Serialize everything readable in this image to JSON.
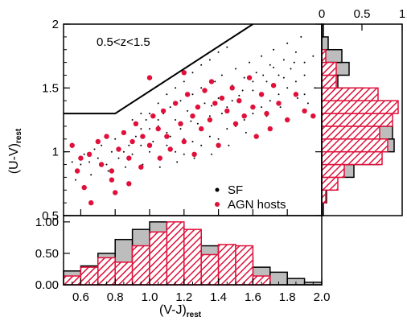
{
  "chart_data": [
    {
      "type": "scatter",
      "panel": "main",
      "annotation": "0.5<z<1.5",
      "xlabel": "(V-J)",
      "xlabel_sub": "rest",
      "ylabel": "(U-V)",
      "ylabel_sub": "rest",
      "xlim": [
        0.5,
        2.0
      ],
      "ylim": [
        0.5,
        2.0
      ],
      "y_ticks": [
        0.5,
        1,
        1.5,
        2
      ],
      "y_tick_labels": [
        "0.5",
        "1",
        "1.5",
        "2"
      ],
      "legend_position": "bottom-right",
      "selection_boundary": [
        [
          0.5,
          1.3
        ],
        [
          0.8,
          1.3
        ],
        [
          1.6,
          2.0
        ]
      ],
      "series": [
        {
          "name": "SF",
          "color": "#000000",
          "marker": "dot",
          "points": [
            [
              0.88,
              1.05
            ],
            [
              0.92,
              1.12
            ],
            [
              0.95,
              1.18
            ],
            [
              0.98,
              1.25
            ],
            [
              1.02,
              1.08
            ],
            [
              1.05,
              1.2
            ],
            [
              1.08,
              1.3
            ],
            [
              1.1,
              1.15
            ],
            [
              1.12,
              1.35
            ],
            [
              1.15,
              1.25
            ],
            [
              1.18,
              1.4
            ],
            [
              1.2,
              1.1
            ],
            [
              1.22,
              1.32
            ],
            [
              1.25,
              1.45
            ],
            [
              1.28,
              1.22
            ],
            [
              1.3,
              1.5
            ],
            [
              1.32,
              1.38
            ],
            [
              1.35,
              1.28
            ],
            [
              1.38,
              1.55
            ],
            [
              1.4,
              1.42
            ],
            [
              1.42,
              1.6
            ],
            [
              1.45,
              1.35
            ],
            [
              1.48,
              1.52
            ],
            [
              1.5,
              1.65
            ],
            [
              1.52,
              1.44
            ],
            [
              1.55,
              1.58
            ],
            [
              1.58,
              1.7
            ],
            [
              1.6,
              1.48
            ],
            [
              1.62,
              1.62
            ],
            [
              1.65,
              1.75
            ],
            [
              1.68,
              1.55
            ],
            [
              1.7,
              1.68
            ],
            [
              1.72,
              1.8
            ],
            [
              1.75,
              1.6
            ],
            [
              1.78,
              1.72
            ],
            [
              1.8,
              1.85
            ],
            [
              1.82,
              1.65
            ],
            [
              1.85,
              1.78
            ],
            [
              1.88,
              1.9
            ],
            [
              1.9,
              1.7
            ],
            [
              0.82,
              0.95
            ],
            [
              0.85,
              1.0
            ],
            [
              0.9,
              0.98
            ],
            [
              0.95,
              1.05
            ],
            [
              1.0,
              1.0
            ],
            [
              1.05,
              0.95
            ],
            [
              1.1,
              1.05
            ],
            [
              1.15,
              1.0
            ],
            [
              1.2,
              0.98
            ],
            [
              1.25,
              1.08
            ],
            [
              1.3,
              1.05
            ],
            [
              1.35,
              1.12
            ],
            [
              1.4,
              1.1
            ],
            [
              1.45,
              1.18
            ],
            [
              1.5,
              1.2
            ],
            [
              1.55,
              1.25
            ],
            [
              1.6,
              1.3
            ],
            [
              1.65,
              1.35
            ],
            [
              1.7,
              1.4
            ],
            [
              1.75,
              1.45
            ],
            [
              1.8,
              1.5
            ],
            [
              1.85,
              1.55
            ],
            [
              1.9,
              1.45
            ],
            [
              0.75,
              0.9
            ],
            [
              0.78,
              1.0
            ],
            [
              0.7,
              0.95
            ],
            [
              0.72,
              1.05
            ],
            [
              0.65,
              0.92
            ],
            [
              0.68,
              1.02
            ],
            [
              0.6,
              0.9
            ],
            [
              0.62,
              0.98
            ],
            [
              0.58,
              0.85
            ],
            [
              0.55,
              0.92
            ],
            [
              1.0,
              1.3
            ],
            [
              1.05,
              1.38
            ],
            [
              1.1,
              1.45
            ],
            [
              1.15,
              1.5
            ],
            [
              1.2,
              1.55
            ],
            [
              1.25,
              1.62
            ],
            [
              1.3,
              1.68
            ],
            [
              1.35,
              1.72
            ],
            [
              1.4,
              1.78
            ],
            [
              1.45,
              1.82
            ],
            [
              0.9,
              1.25
            ],
            [
              0.95,
              1.3
            ],
            [
              1.0,
              1.18
            ],
            [
              1.05,
              1.25
            ],
            [
              0.85,
              1.15
            ],
            [
              0.8,
              1.1
            ],
            [
              1.12,
              1.12
            ],
            [
              1.18,
              1.18
            ],
            [
              1.24,
              1.24
            ],
            [
              1.36,
              1.36
            ],
            [
              1.42,
              1.3
            ],
            [
              1.48,
              1.4
            ],
            [
              1.54,
              1.48
            ],
            [
              1.6,
              1.55
            ],
            [
              1.66,
              1.6
            ],
            [
              1.72,
              1.66
            ],
            [
              1.78,
              1.58
            ],
            [
              1.84,
              1.7
            ],
            [
              1.9,
              1.6
            ],
            [
              1.95,
              1.75
            ],
            [
              1.96,
              1.5
            ],
            [
              1.92,
              1.38
            ],
            [
              1.86,
              1.42
            ],
            [
              1.76,
              1.35
            ],
            [
              1.68,
              1.28
            ],
            [
              1.56,
              1.15
            ],
            [
              1.46,
              1.05
            ],
            [
              1.36,
              0.98
            ],
            [
              1.26,
              0.95
            ],
            [
              1.16,
              0.92
            ],
            [
              1.06,
              0.88
            ],
            [
              0.96,
              0.9
            ],
            [
              0.86,
              0.88
            ],
            [
              0.76,
              0.85
            ],
            [
              0.66,
              0.82
            ],
            [
              0.57,
              0.78
            ]
          ]
        },
        {
          "name": "AGN hosts",
          "color": "#e0103a",
          "marker": "dot",
          "points": [
            [
              0.55,
              1.05
            ],
            [
              0.58,
              0.85
            ],
            [
              0.6,
              0.95
            ],
            [
              0.62,
              0.72
            ],
            [
              0.65,
              0.98
            ],
            [
              0.66,
              0.6
            ],
            [
              0.7,
              1.08
            ],
            [
              0.72,
              0.9
            ],
            [
              0.75,
              1.12
            ],
            [
              0.78,
              0.85
            ],
            [
              0.8,
              0.68
            ],
            [
              0.82,
              1.02
            ],
            [
              0.85,
              1.15
            ],
            [
              0.88,
              0.95
            ],
            [
              0.9,
              1.08
            ],
            [
              0.92,
              1.22
            ],
            [
              0.95,
              0.88
            ],
            [
              0.96,
              1.12
            ],
            [
              1.0,
              1.05
            ],
            [
              1.02,
              1.28
            ],
            [
              1.05,
              1.18
            ],
            [
              1.06,
              0.95
            ],
            [
              1.08,
              1.32
            ],
            [
              1.1,
              1.12
            ],
            [
              1.12,
              1.02
            ],
            [
              1.15,
              1.38
            ],
            [
              1.18,
              1.22
            ],
            [
              1.2,
              1.08
            ],
            [
              1.22,
              1.45
            ],
            [
              1.25,
              1.28
            ],
            [
              1.26,
              0.98
            ],
            [
              1.28,
              1.35
            ],
            [
              1.3,
              1.18
            ],
            [
              1.32,
              1.48
            ],
            [
              1.35,
              1.25
            ],
            [
              1.36,
              1.55
            ],
            [
              1.38,
              1.38
            ],
            [
              1.4,
              1.05
            ],
            [
              1.42,
              1.42
            ],
            [
              1.45,
              1.32
            ],
            [
              1.48,
              1.5
            ],
            [
              1.5,
              1.22
            ],
            [
              1.52,
              1.4
            ],
            [
              1.55,
              1.28
            ],
            [
              1.58,
              1.58
            ],
            [
              1.6,
              1.35
            ],
            [
              1.62,
              1.12
            ],
            [
              1.65,
              1.45
            ],
            [
              1.68,
              1.3
            ],
            [
              1.7,
              1.18
            ],
            [
              1.72,
              1.52
            ],
            [
              1.75,
              1.38
            ],
            [
              1.8,
              1.25
            ],
            [
              1.85,
              1.45
            ],
            [
              1.9,
              1.32
            ],
            [
              1.95,
              1.28
            ],
            [
              1.0,
              1.58
            ],
            [
              1.2,
              1.62
            ],
            [
              0.78,
              0.78
            ],
            [
              0.88,
              0.75
            ]
          ]
        }
      ]
    },
    {
      "type": "bar",
      "panel": "bottom-histogram",
      "xlabel": "(V-J)",
      "xlabel_sub": "rest",
      "xlim": [
        0.5,
        2.0
      ],
      "ylim": [
        0,
        1.1
      ],
      "x_ticks": [
        0.6,
        0.8,
        1.0,
        1.2,
        1.4,
        1.6,
        1.8,
        2.0
      ],
      "x_tick_labels": [
        "0.6",
        "0.8",
        "1.0",
        "1.2",
        "1.4",
        "1.6",
        "1.8",
        "2.0"
      ],
      "y_ticks": [
        0.0,
        0.5,
        1.0
      ],
      "y_tick_labels": [
        "0.00",
        "0.50",
        "1.00"
      ],
      "bin_edges": [
        0.5,
        0.6,
        0.7,
        0.8,
        0.9,
        1.0,
        1.1,
        1.2,
        1.3,
        1.4,
        1.5,
        1.6,
        1.7,
        1.8,
        1.9,
        2.0
      ],
      "series": [
        {
          "name": "SF",
          "color": "#bdbdbd",
          "values": [
            0.22,
            0.3,
            0.5,
            0.72,
            0.88,
            1.0,
            0.95,
            0.82,
            0.62,
            0.6,
            0.45,
            0.28,
            0.2,
            0.1,
            0.04
          ]
        },
        {
          "name": "AGN hosts",
          "color": "#e0103a",
          "values": [
            0.14,
            0.28,
            0.43,
            0.36,
            0.62,
            0.84,
            1.0,
            0.88,
            0.48,
            0.64,
            0.62,
            0.14,
            0.0,
            0.0,
            0.0
          ]
        }
      ]
    },
    {
      "type": "bar",
      "panel": "right-histogram",
      "orientation": "horizontal",
      "ylim": [
        0.5,
        2.0
      ],
      "xlim": [
        0,
        1.0
      ],
      "x_ticks": [
        0,
        0.5,
        1
      ],
      "x_tick_labels": [
        "0",
        "0.5",
        "1"
      ],
      "bin_edges": [
        0.5,
        0.6,
        0.7,
        0.8,
        0.9,
        1.0,
        1.1,
        1.2,
        1.3,
        1.4,
        1.5,
        1.6,
        1.7,
        1.8,
        1.9,
        2.0
      ],
      "series": [
        {
          "name": "SF",
          "color": "#bdbdbd",
          "values": [
            0.02,
            0.06,
            0.15,
            0.4,
            0.72,
            0.9,
            0.88,
            0.72,
            0.88,
            0.52,
            0.2,
            0.34,
            0.25,
            0.08,
            0.02
          ]
        },
        {
          "name": "AGN hosts",
          "color": "#e0103a",
          "values": [
            0.0,
            0.05,
            0.2,
            0.28,
            0.75,
            0.82,
            0.72,
            0.88,
            0.95,
            0.7,
            0.18,
            0.18,
            0.05,
            0.0,
            0.0
          ]
        }
      ]
    }
  ]
}
